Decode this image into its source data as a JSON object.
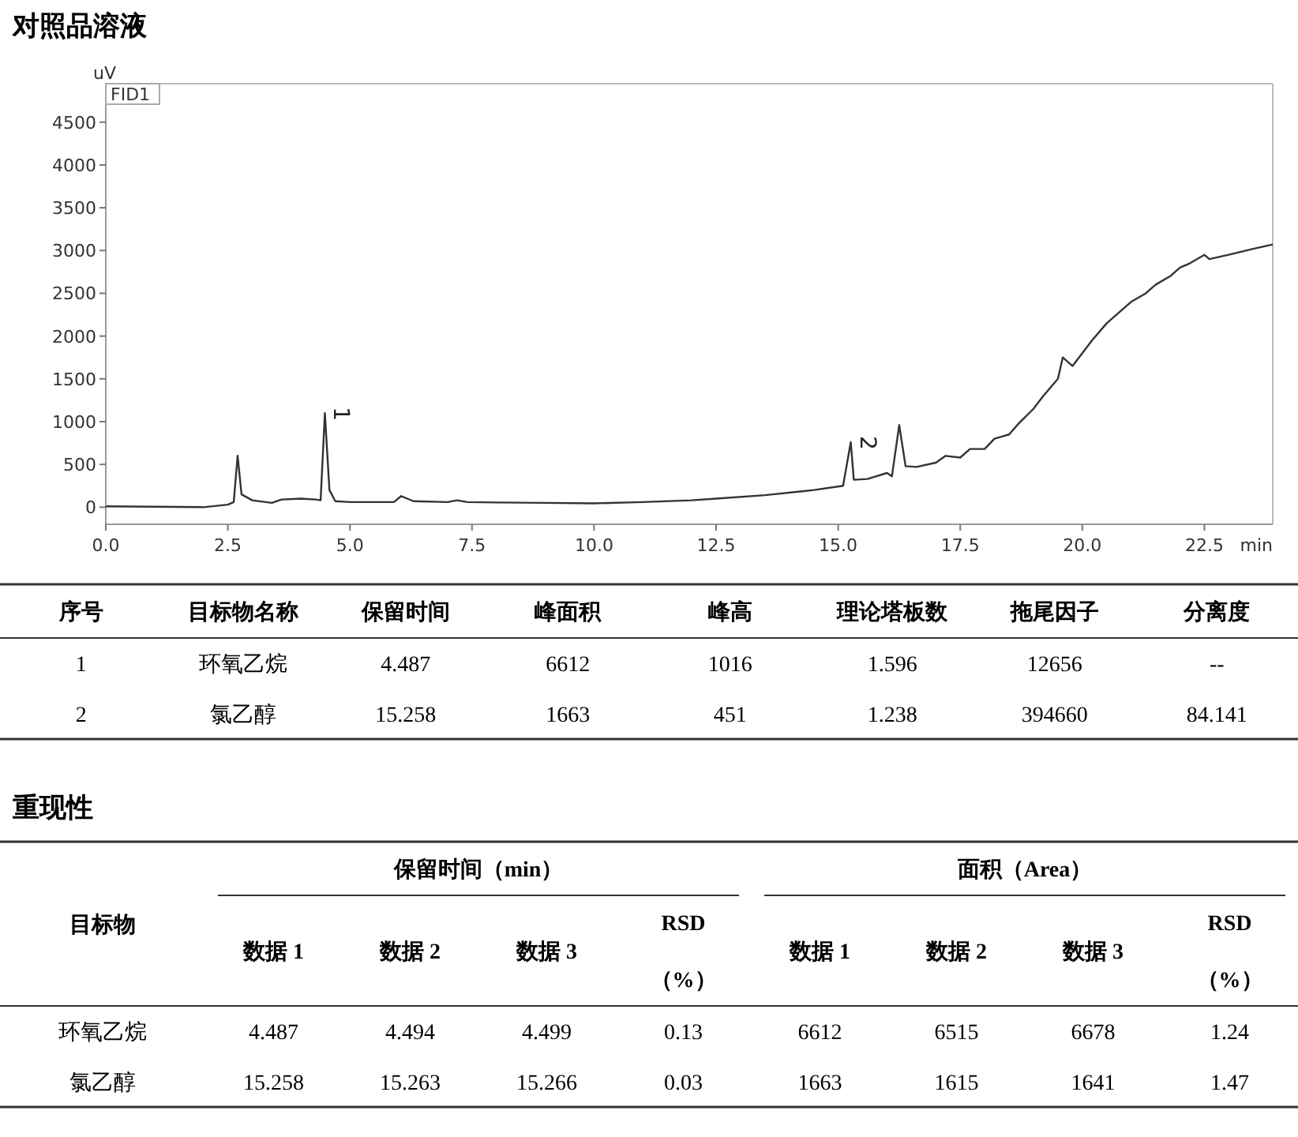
{
  "chart_data": [
    {
      "type": "line",
      "title": "对照品溶液",
      "ylabel": "uV",
      "xlabel": "min",
      "xlim": [
        0,
        23.9
      ],
      "ylim": [
        -200,
        4950
      ],
      "xticks": [
        {
          "value": 0,
          "label": "0.0"
        },
        {
          "value": 2.5,
          "label": "2.5"
        },
        {
          "value": 5,
          "label": "5.0"
        },
        {
          "value": 7.5,
          "label": "7.5"
        },
        {
          "value": 10,
          "label": "10.0"
        },
        {
          "value": 12.5,
          "label": "12.5"
        },
        {
          "value": 15,
          "label": "15.0"
        },
        {
          "value": 17.5,
          "label": "17.5"
        },
        {
          "value": 20,
          "label": "20.0"
        },
        {
          "value": 22.5,
          "label": "22.5"
        }
      ],
      "yticks": [
        0,
        500,
        1000,
        1500,
        2000,
        2500,
        3000,
        3500,
        4000,
        4500
      ],
      "annotations": [
        "FID1",
        {
          "text": "1",
          "x": 4.487,
          "y": 1100
        },
        {
          "text": "2",
          "x": 15.258,
          "y": 760
        }
      ],
      "series": [
        {
          "color": "#333333",
          "x": [
            0,
            1,
            2,
            2.5,
            2.62,
            2.7,
            2.78,
            3,
            3.4,
            3.6,
            4,
            4.3,
            4.4,
            4.487,
            4.58,
            4.7,
            5,
            5.9,
            6.05,
            6.3,
            7,
            7.2,
            7.4,
            8,
            9,
            10,
            11,
            12,
            12.5,
            13.5,
            14.5,
            15.1,
            15.258,
            15.32,
            15.6,
            16,
            16.1,
            16.25,
            16.38,
            16.6,
            17,
            17.2,
            17.5,
            17.7,
            18,
            18.2,
            18.5,
            18.7,
            19,
            19.2,
            19.5,
            19.6,
            19.8,
            20,
            20.2,
            20.5,
            20.8,
            21,
            21.3,
            21.5,
            21.8,
            22,
            22.2,
            22.5,
            22.6,
            23,
            23.5,
            23.9
          ],
          "values": [
            10,
            5,
            0,
            30,
            60,
            600,
            150,
            80,
            50,
            90,
            100,
            90,
            80,
            1100,
            200,
            70,
            60,
            60,
            130,
            70,
            60,
            80,
            60,
            55,
            50,
            45,
            60,
            80,
            100,
            140,
            200,
            250,
            760,
            320,
            330,
            400,
            360,
            960,
            480,
            470,
            520,
            600,
            580,
            680,
            680,
            800,
            850,
            980,
            1150,
            1300,
            1500,
            1750,
            1650,
            1800,
            1950,
            2150,
            2300,
            2400,
            2500,
            2600,
            2700,
            2800,
            2850,
            2950,
            2900,
            2950,
            3020,
            3070
          ]
        }
      ]
    },
    {
      "type": "other",
      "categories": [
        "序号",
        "目标物名称",
        "保留时间",
        "峰面积",
        "峰高",
        "理论塔板数",
        "拖尾因子",
        "分离度"
      ],
      "cell_labels": [
        [
          "1",
          "环氧乙烷",
          "4.487",
          "6612",
          "1016",
          "1.596",
          "12656",
          "--"
        ],
        [
          "2",
          "氯乙醇",
          "15.258",
          "1663",
          "451",
          "1.238",
          "394660",
          "84.141"
        ]
      ]
    },
    {
      "type": "other",
      "title": "重现性",
      "annotations": [
        "目标物",
        "保留时间（min）",
        "面积（Area）"
      ],
      "categories": [
        "数据 1",
        "数据 2",
        "数据 3",
        "RSD\n（%）",
        "数据 1",
        "数据 2",
        "数据 3",
        "RSD\n（%）"
      ],
      "y_categories": [
        "环氧乙烷",
        "氯乙醇"
      ],
      "cell_labels": [
        [
          "4.487",
          "4.494",
          "4.499",
          "0.13",
          "6612",
          "6515",
          "6678",
          "1.24"
        ],
        [
          "15.258",
          "15.263",
          "15.266",
          "0.03",
          "1663",
          "1615",
          "1641",
          "1.47"
        ]
      ]
    }
  ]
}
